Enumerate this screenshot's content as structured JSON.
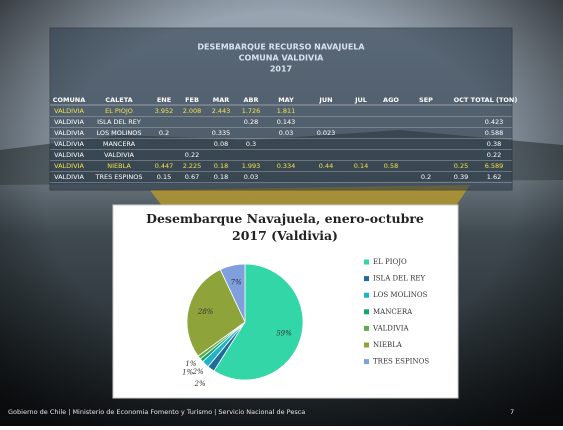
{
  "table": {
    "title": [
      "DESEMBARQUE RECURSO NAVAJUELA",
      "COMUNA VALDIVIA",
      "2017"
    ],
    "header": [
      "COMUNA",
      "CALETA",
      "ENE",
      "FEB",
      "MAR",
      "ABR",
      "MAY",
      "JUN",
      "JUL",
      "AGO",
      "SEP",
      "OCT",
      "TOTAL (TON)"
    ],
    "rows": [
      [
        "VALDIVIA",
        "EL PIOJO",
        "3.952",
        "2.008",
        "2.443",
        "1.726",
        "1.811",
        null,
        null,
        null,
        null,
        null,
        null
      ],
      [
        "VALDIVIA",
        "ISLA DEL REY",
        null,
        null,
        null,
        "0.28",
        "0.143",
        null,
        null,
        null,
        null,
        null,
        "0.423"
      ],
      [
        "VALDIVIA",
        "LOS MOLINOS",
        "0.2",
        null,
        "0.335",
        null,
        "0.03",
        "0.023",
        null,
        null,
        null,
        null,
        "0.588"
      ],
      [
        "VALDIVIA",
        "MANCERA",
        null,
        null,
        "0.08",
        "0.3",
        null,
        null,
        null,
        null,
        null,
        null,
        "0.38"
      ],
      [
        "VALDIVIA",
        "VALDIVIA",
        null,
        "0.22",
        null,
        null,
        null,
        null,
        null,
        null,
        null,
        null,
        "0.22"
      ],
      [
        "VALDIVIA",
        "NIEBLA",
        "0.447",
        "2.225",
        "0.18",
        "1.993",
        "0.334",
        "0.44",
        "0.14",
        "0.58",
        null,
        "0.25",
        "6.589"
      ],
      [
        "VALDIVIA",
        "TRES ESPINOS",
        "0.15",
        "0.67",
        "0.18",
        "0.03",
        null,
        null,
        null,
        null,
        "0.2",
        "0.39",
        "1.62"
      ]
    ]
  },
  "chart_data": {
    "type": "pie",
    "title": "Desembarque Navajuela, enero-octubre 2017 (Valdivia)",
    "categories": [
      "EL PIOJO",
      "ISLA DEL REY",
      "LOS MOLINOS",
      "MANCERA",
      "VALDIVIA",
      "NIEBLA",
      "TRES ESPINOS"
    ],
    "values": [
      59,
      2,
      2,
      1,
      1,
      28,
      7
    ],
    "value_labels": [
      "59%",
      "2%",
      "2%",
      "1%",
      "1%",
      "28%",
      "7%"
    ],
    "colors": [
      "#33d6a6",
      "#1f6b9e",
      "#1db4c8",
      "#17a56c",
      "#5cae4e",
      "#8fa33b",
      "#7f9fdd"
    ],
    "legend": "right"
  },
  "footer": {
    "text": "Gobierno de Chile | Ministerio de Economia Fomento y Turismo | Servicio Nacional de Pesca",
    "page": "7"
  }
}
